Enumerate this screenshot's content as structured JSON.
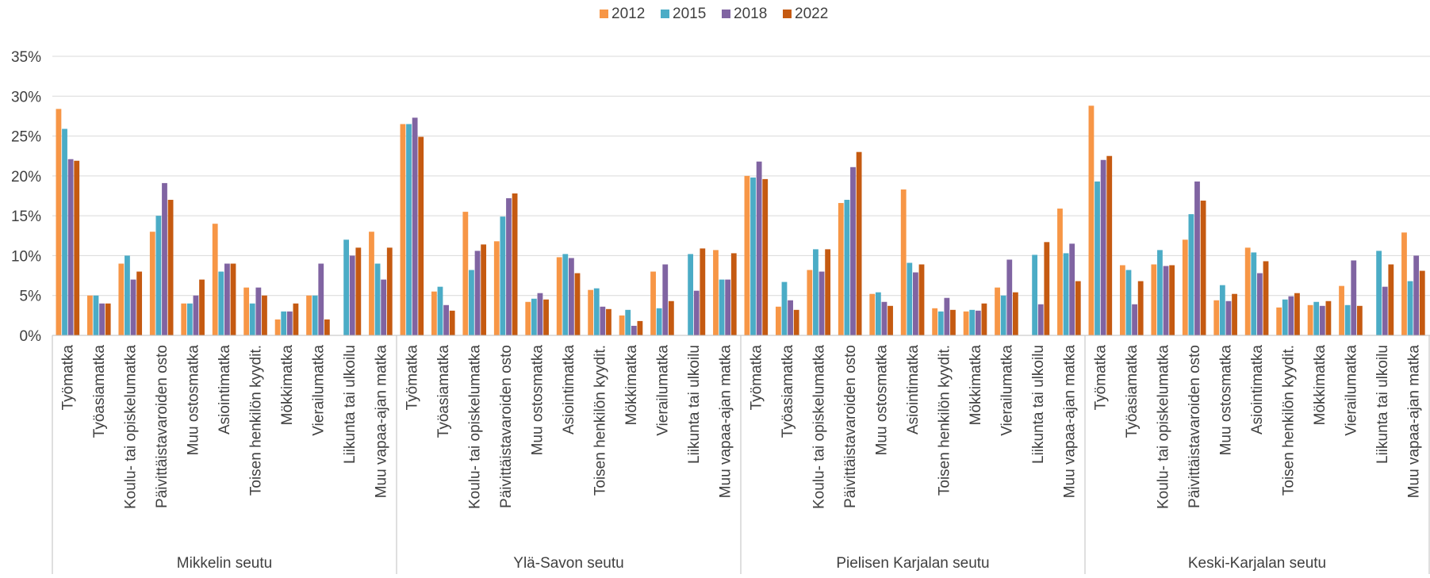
{
  "chart_data": {
    "type": "bar",
    "title": "",
    "xlabel": "",
    "ylabel": "",
    "ylim": [
      0,
      0.35
    ],
    "yticks": [
      "0%",
      "5%",
      "10%",
      "15%",
      "20%",
      "25%",
      "30%",
      "35%"
    ],
    "grid": true,
    "legend_position": "top",
    "groups": [
      "Mikkelin seutu",
      "Ylä-Savon seutu",
      "Pielisen Karjalan seutu",
      "Keski-Karjalan seutu"
    ],
    "categories": [
      "Työmatka",
      "Työasiamatka",
      "Koulu- tai opiskelumatka",
      "Päivittäistavaroiden osto",
      "Muu ostosmatka",
      "Asiointimatka",
      "Toisen henkilön kyydit.",
      "Mökkimatka",
      "Vierailumatka",
      "Liikunta tai ulkoilu",
      "Muu vapaa-ajan matka"
    ],
    "series": [
      {
        "name": "2012",
        "color": "#F79646",
        "values": [
          [
            0.284,
            0.05,
            0.09,
            0.13,
            0.04,
            0.14,
            0.06,
            0.02,
            0.05,
            0.0,
            0.13
          ],
          [
            0.265,
            0.055,
            0.155,
            0.118,
            0.042,
            0.098,
            0.057,
            0.025,
            0.08,
            0.0,
            0.107
          ],
          [
            0.2,
            0.036,
            0.082,
            0.166,
            0.052,
            0.183,
            0.034,
            0.03,
            0.06,
            0.0,
            0.159
          ],
          [
            0.288,
            0.088,
            0.089,
            0.12,
            0.044,
            0.11,
            0.035,
            0.038,
            0.062,
            0.0,
            0.129
          ]
        ]
      },
      {
        "name": "2015",
        "color": "#4BACC6",
        "values": [
          [
            0.259,
            0.05,
            0.1,
            0.15,
            0.04,
            0.08,
            0.04,
            0.03,
            0.05,
            0.12,
            0.09
          ],
          [
            0.265,
            0.061,
            0.082,
            0.149,
            0.046,
            0.102,
            0.059,
            0.032,
            0.034,
            0.102,
            0.07
          ],
          [
            0.198,
            0.067,
            0.108,
            0.17,
            0.054,
            0.091,
            0.03,
            0.032,
            0.05,
            0.101,
            0.103
          ],
          [
            0.193,
            0.082,
            0.107,
            0.152,
            0.063,
            0.104,
            0.045,
            0.042,
            0.038,
            0.106,
            0.068
          ]
        ]
      },
      {
        "name": "2018",
        "color": "#8064A2",
        "values": [
          [
            0.221,
            0.04,
            0.07,
            0.191,
            0.05,
            0.09,
            0.06,
            0.03,
            0.09,
            0.1,
            0.07
          ],
          [
            0.273,
            0.038,
            0.106,
            0.172,
            0.053,
            0.097,
            0.036,
            0.012,
            0.089,
            0.056,
            0.07
          ],
          [
            0.218,
            0.044,
            0.08,
            0.211,
            0.042,
            0.079,
            0.047,
            0.031,
            0.095,
            0.039,
            0.115
          ],
          [
            0.22,
            0.039,
            0.087,
            0.193,
            0.043,
            0.078,
            0.049,
            0.037,
            0.094,
            0.061,
            0.1
          ]
        ]
      },
      {
        "name": "2022",
        "color": "#C55A11",
        "values": [
          [
            0.219,
            0.04,
            0.08,
            0.17,
            0.07,
            0.09,
            0.05,
            0.04,
            0.02,
            0.11,
            0.11
          ],
          [
            0.249,
            0.031,
            0.114,
            0.178,
            0.045,
            0.078,
            0.033,
            0.018,
            0.043,
            0.109,
            0.103
          ],
          [
            0.196,
            0.032,
            0.108,
            0.23,
            0.037,
            0.089,
            0.032,
            0.04,
            0.054,
            0.117,
            0.068
          ],
          [
            0.225,
            0.068,
            0.088,
            0.169,
            0.052,
            0.093,
            0.053,
            0.043,
            0.037,
            0.089,
            0.081
          ]
        ]
      }
    ]
  }
}
